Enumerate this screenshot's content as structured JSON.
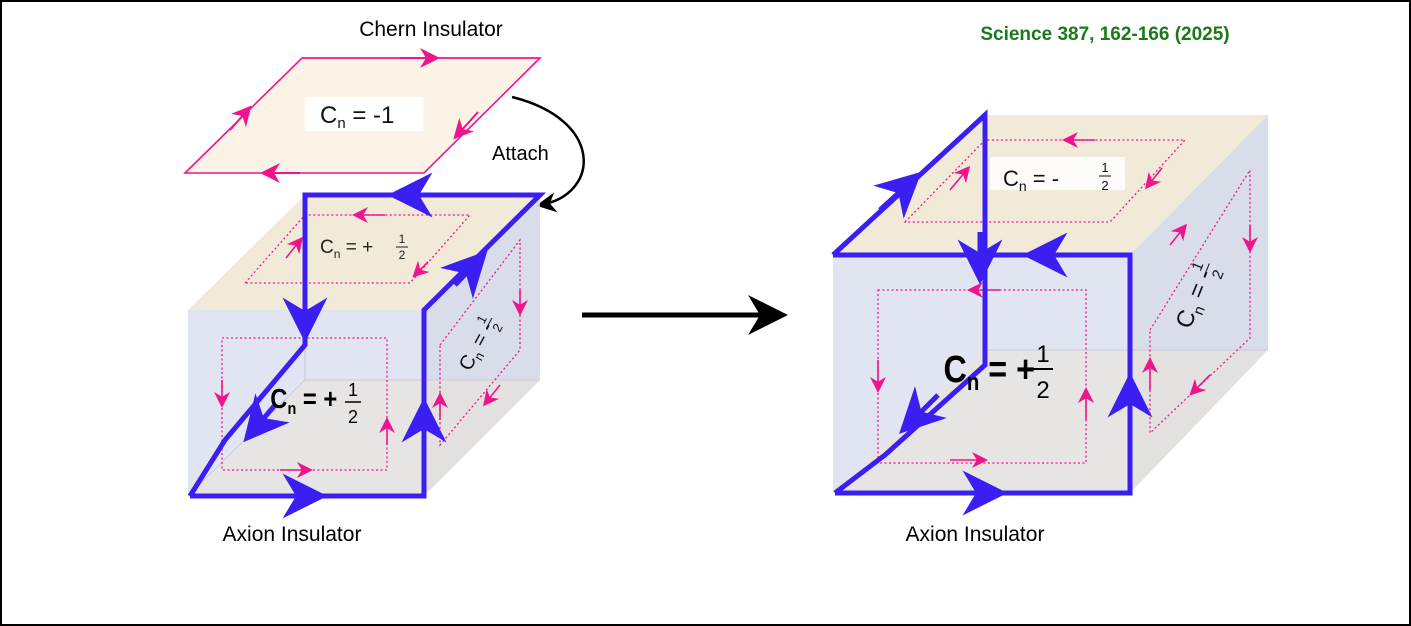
{
  "citation": "Science 387, 162-166 (2025)",
  "left": {
    "chern_label": "Chern Insulator",
    "chern_cn_C": "C",
    "chern_cn_sub": "n",
    "chern_cn_rest": " = -1",
    "attach_label": "Attach",
    "axion_label": "Axion Insulator",
    "top_face_C": "C",
    "top_face_sub": "n",
    "top_face_sign": " = +",
    "front_face_C": "C",
    "front_face_sub": "n",
    "front_face_sign": " = +",
    "side_face_C": "C",
    "side_face_sub": "n",
    "side_face_sign": " = -",
    "frac_num": "1",
    "frac_den": "2"
  },
  "right": {
    "axion_label": "Axion Insulator",
    "top_face_C": "C",
    "top_face_sub": "n",
    "top_face_sign": " = -",
    "front_face_C": "C",
    "front_face_sub": "n",
    "front_face_sign": " = +",
    "side_face_C": "C",
    "side_face_sub": "n",
    "side_face_sign": " = -",
    "frac_num": "1",
    "frac_den": "2"
  },
  "colors": {
    "blue_edge": "#3a1ef2",
    "pink_edge": "#f0148c",
    "face_fill": "#f3ead8",
    "side_fill": "#d8dcea",
    "citation": "#1a7a1a"
  }
}
